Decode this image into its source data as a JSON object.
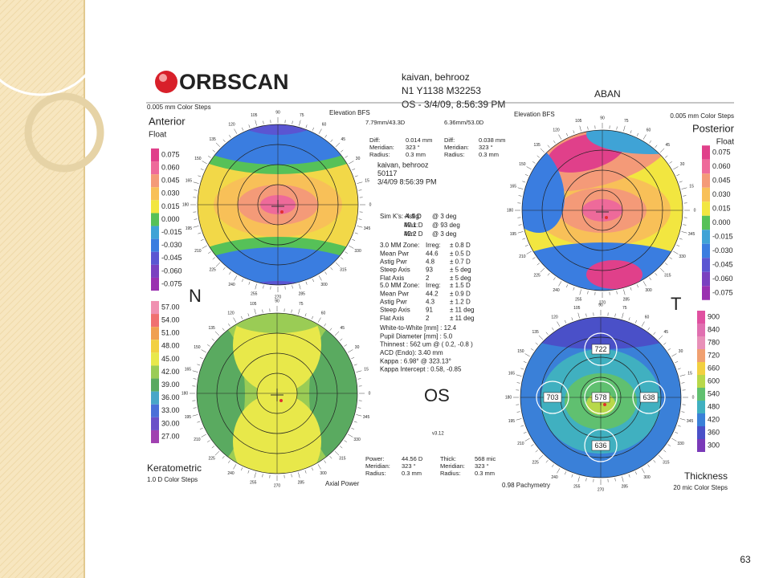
{
  "slide": {
    "page_number": "63"
  },
  "header": {
    "logo": "ORBSCAN",
    "name": "kaivan, behrooz",
    "id": "N1 Y1138 M32253",
    "exam": "OS - 3/4/09, 8:56:39 PM",
    "operator": "ABAN"
  },
  "anterior": {
    "steps": "0.005 mm Color Steps",
    "reference": "Elevation BFS",
    "title": "Anterior",
    "subtitle": "Float",
    "scale": [
      "0.075",
      "0.060",
      "0.045",
      "0.030",
      "0.015",
      "0.000",
      "-0.015",
      "-0.030",
      "-0.045",
      "-0.060",
      "-0.075"
    ]
  },
  "posterior": {
    "steps": "0.005 mm Color Steps",
    "reference": "Elevation BFS",
    "title": "Posterior",
    "subtitle": "Float",
    "scale": [
      "0.075",
      "0.060",
      "0.045",
      "0.030",
      "0.015",
      "0.000",
      "-0.015",
      "-0.030",
      "-0.045",
      "-0.060",
      "-0.075"
    ]
  },
  "keratometric": {
    "title": "Keratometric",
    "steps": "1.0 D Color Steps",
    "mode": "Axial Power",
    "scale": [
      "57.00",
      "54.00",
      "51.00",
      "48.00",
      "45.00",
      "42.00",
      "39.00",
      "36.00",
      "33.00",
      "30.00",
      "27.00"
    ]
  },
  "thickness": {
    "title": "Thickness",
    "steps": "20 mic Color Steps",
    "mode": "0.98 Pachymetry",
    "scale": [
      "900",
      "840",
      "780",
      "720",
      "660",
      "600",
      "540",
      "480",
      "420",
      "360",
      "300"
    ],
    "readings": [
      "722",
      "703",
      "578",
      "638",
      "636"
    ]
  },
  "orientation": {
    "nasal": "N",
    "temporal": "T",
    "eye": "OS",
    "version": "v3.12"
  },
  "ring_labels": [
    "0",
    "15",
    "30",
    "45",
    "60",
    "75",
    "90",
    "105",
    "120",
    "135",
    "150",
    "165",
    "180",
    "195",
    "210",
    "225",
    "240",
    "255",
    "270",
    "285",
    "300",
    "315",
    "330",
    "345"
  ],
  "center": {
    "bfs": [
      "7.79mm/43.3D",
      "6.36mm/53.0D"
    ],
    "diff_left": [
      [
        "Diff:",
        "0.014 mm"
      ],
      [
        "Meridian:",
        "323 °"
      ],
      [
        "Radius:",
        "0.3 mm"
      ]
    ],
    "diff_right": [
      [
        "Diff:",
        "0.038 mm"
      ],
      [
        "Meridian:",
        "323 °"
      ],
      [
        "Radius:",
        "0.3 mm"
      ]
    ],
    "patient": [
      "kaivan, behrooz",
      "50117",
      "3/4/09 8:56:39 PM"
    ],
    "simk": [
      [
        "Sim K's: Astig:",
        "-4.9 D",
        "@ 3 deg"
      ],
      [
        "Max:",
        "47.1 D",
        "@ 93 deg"
      ],
      [
        "Min:",
        "42.2 D",
        "@ 3 deg"
      ]
    ],
    "zone3": [
      [
        "3.0 MM Zone:",
        "Irreg:",
        "± 0.8 D"
      ],
      [
        "Mean Pwr",
        "44.6",
        "± 0.5 D"
      ],
      [
        "Astig Pwr",
        "4.8",
        "± 0.7 D"
      ],
      [
        "Steep Axis",
        "93",
        "± 5 deg"
      ],
      [
        "Flat Axis",
        "2",
        "± 5 deg"
      ]
    ],
    "zone5": [
      [
        "5.0 MM Zone:",
        "Irreg:",
        "± 1.5 D"
      ],
      [
        "Mean Pwr",
        "44.2",
        "± 0.9 D"
      ],
      [
        "Astig Pwr",
        "4.3",
        "± 1.2 D"
      ],
      [
        "Steep Axis",
        "91",
        "± 11 deg"
      ],
      [
        "Flat Axis",
        "2",
        "± 11 deg"
      ]
    ],
    "misc": [
      "White-to-White [mm] : 12.4",
      "Pupil Diameter [mm] : 5.0",
      "Thinnest : 562 um @ ( 0.2, -0.8 )",
      "ACD (Endo): 3.40 mm",
      "Kappa : 6.98° @ 323.13°",
      "Kappa Intercept : 0.58, -0.85"
    ]
  },
  "footer": {
    "left": [
      [
        "Power:",
        "44.56 D"
      ],
      [
        "Meridian:",
        "323 °"
      ],
      [
        "Radius:",
        "0.3 mm"
      ]
    ],
    "right": [
      [
        "Thick:",
        "568 mic"
      ],
      [
        "Meridian:",
        "323 °"
      ],
      [
        "Radius:",
        "0.3 mm"
      ]
    ]
  }
}
